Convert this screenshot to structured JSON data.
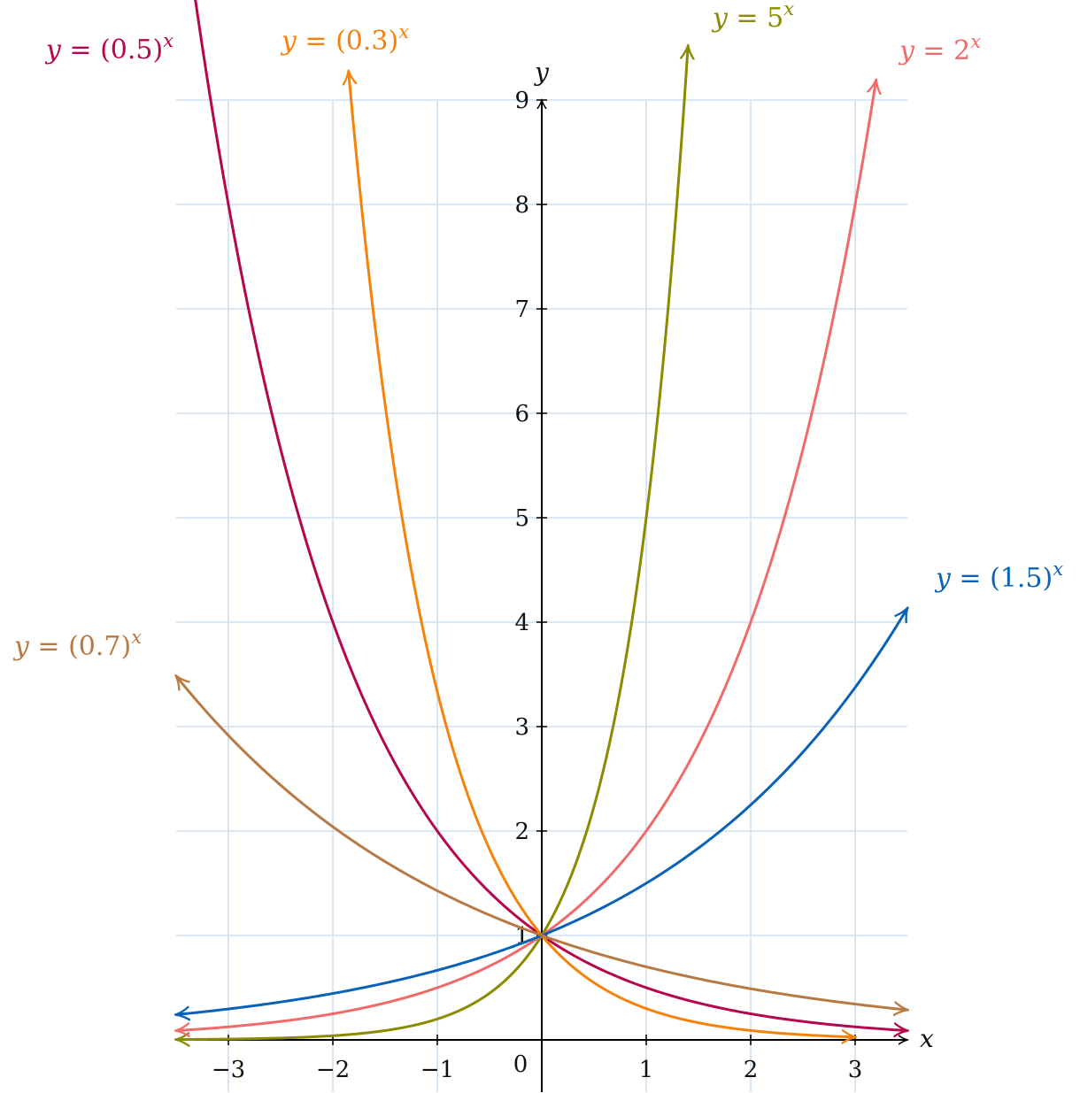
{
  "chart_data": {
    "type": "line",
    "title": "",
    "xlabel": "x",
    "ylabel": "y",
    "xlim": [
      -3.5,
      3.5
    ],
    "ylim": [
      -0.5,
      9
    ],
    "grid": true,
    "origin_label": "0",
    "x_ticks": [
      {
        "value": -3,
        "label": "−3"
      },
      {
        "value": -2,
        "label": "−2"
      },
      {
        "value": -1,
        "label": "−1"
      },
      {
        "value": 1,
        "label": "1"
      },
      {
        "value": 2,
        "label": "2"
      },
      {
        "value": 3,
        "label": "3"
      }
    ],
    "y_ticks": [
      {
        "value": 1,
        "label": "1"
      },
      {
        "value": 2,
        "label": "2"
      },
      {
        "value": 3,
        "label": "3"
      },
      {
        "value": 4,
        "label": "4"
      },
      {
        "value": 5,
        "label": "5"
      },
      {
        "value": 6,
        "label": "6"
      },
      {
        "value": 7,
        "label": "7"
      },
      {
        "value": 8,
        "label": "8"
      },
      {
        "value": 9,
        "label": "9"
      }
    ],
    "series": [
      {
        "label_lhs": "y = ",
        "label_base": "(0.5)",
        "label_exp": "x",
        "base": 0.5,
        "domain": [
          -3.35,
          3.5
        ],
        "color": "#b5064e"
      },
      {
        "label_lhs": "y = ",
        "label_base": "(0.3)",
        "label_exp": "x",
        "base": 0.3,
        "domain": [
          -1.85,
          3.0
        ],
        "color": "#f5820b"
      },
      {
        "label_lhs": "y = ",
        "label_base": "5",
        "label_exp": "x",
        "base": 5,
        "domain": [
          -3.5,
          1.4
        ],
        "color": "#8b8b00"
      },
      {
        "label_lhs": "y = ",
        "label_base": "2",
        "label_exp": "x",
        "base": 2,
        "domain": [
          -3.5,
          3.2
        ],
        "color": "#f06a6a"
      },
      {
        "label_lhs": "y = ",
        "label_base": "(1.5)",
        "label_exp": "x",
        "base": 1.5,
        "domain": [
          -3.5,
          3.5
        ],
        "color": "#0a62b6"
      },
      {
        "label_lhs": "y = ",
        "label_base": "(0.7)",
        "label_exp": "x",
        "base": 0.7,
        "domain": [
          -3.5,
          3.5
        ],
        "color": "#b87a45"
      }
    ]
  }
}
